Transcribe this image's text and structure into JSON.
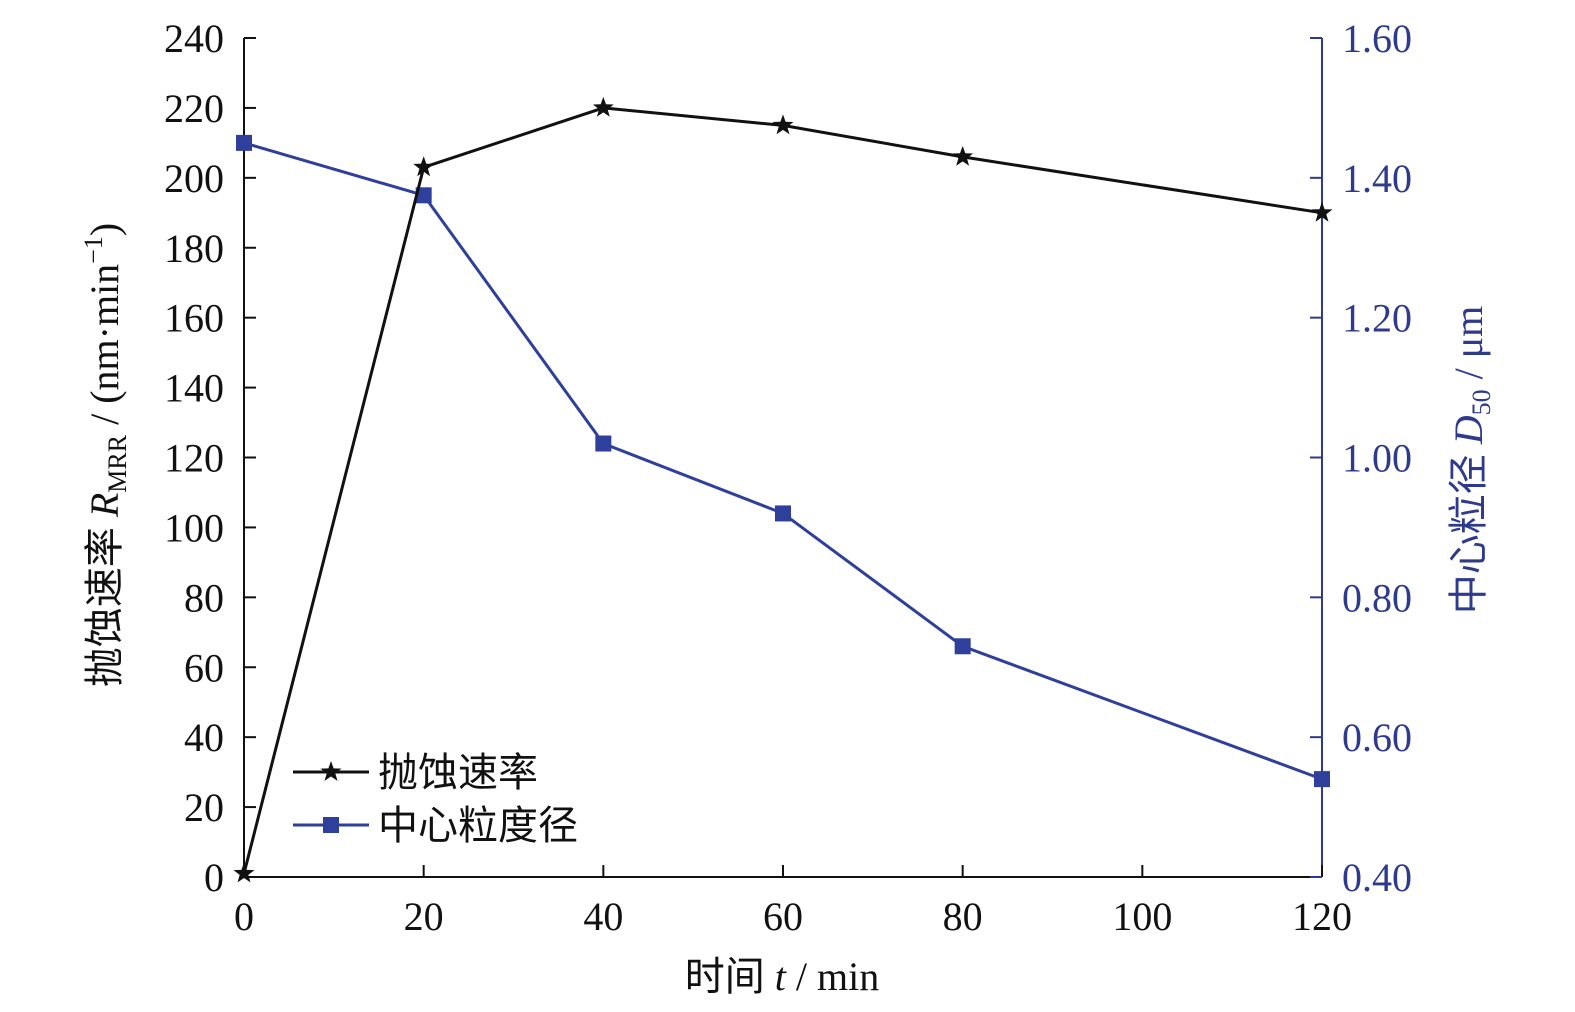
{
  "chart_data": {
    "type": "line",
    "x_axis": {
      "label_prefix": "时间 ",
      "label_var": "t",
      "label_suffix": " / min",
      "range": [
        0,
        120
      ],
      "ticks": [
        "0",
        "20",
        "40",
        "60",
        "80",
        "100",
        "120"
      ]
    },
    "y_left": {
      "label_prefix": "抛蚀速率 ",
      "label_var": "R",
      "label_sub": "MRR",
      "label_suffix": " / (nm·min",
      "label_sup": "−1",
      "label_close": ")",
      "range": [
        0,
        240
      ],
      "ticks": [
        "0",
        "20",
        "40",
        "60",
        "80",
        "100",
        "120",
        "140",
        "160",
        "180",
        "200",
        "220",
        "240"
      ]
    },
    "y_right": {
      "label_prefix": "中心粒径 ",
      "label_var": "D",
      "label_sub": "50",
      "label_suffix": " / μm",
      "range": [
        0.4,
        1.6
      ],
      "ticks": [
        "0.40",
        "0.60",
        "0.80",
        "1.00",
        "1.20",
        "1.40",
        "1.60"
      ],
      "color": "#2e3a8c"
    },
    "series": [
      {
        "name": "抛蚀速率",
        "axis": "left",
        "marker": "star",
        "color": "#111111",
        "x": [
          0,
          20,
          40,
          60,
          80,
          120
        ],
        "y": [
          1,
          203,
          220,
          215,
          206,
          190
        ]
      },
      {
        "name": "中心粒度径",
        "axis": "right",
        "marker": "square",
        "color": "#2e3f9c",
        "x": [
          0,
          20,
          40,
          60,
          80,
          120
        ],
        "y": [
          1.45,
          1.375,
          1.02,
          0.92,
          0.73,
          0.54
        ]
      }
    ],
    "legend_position": "bottom-left",
    "grid": false
  }
}
